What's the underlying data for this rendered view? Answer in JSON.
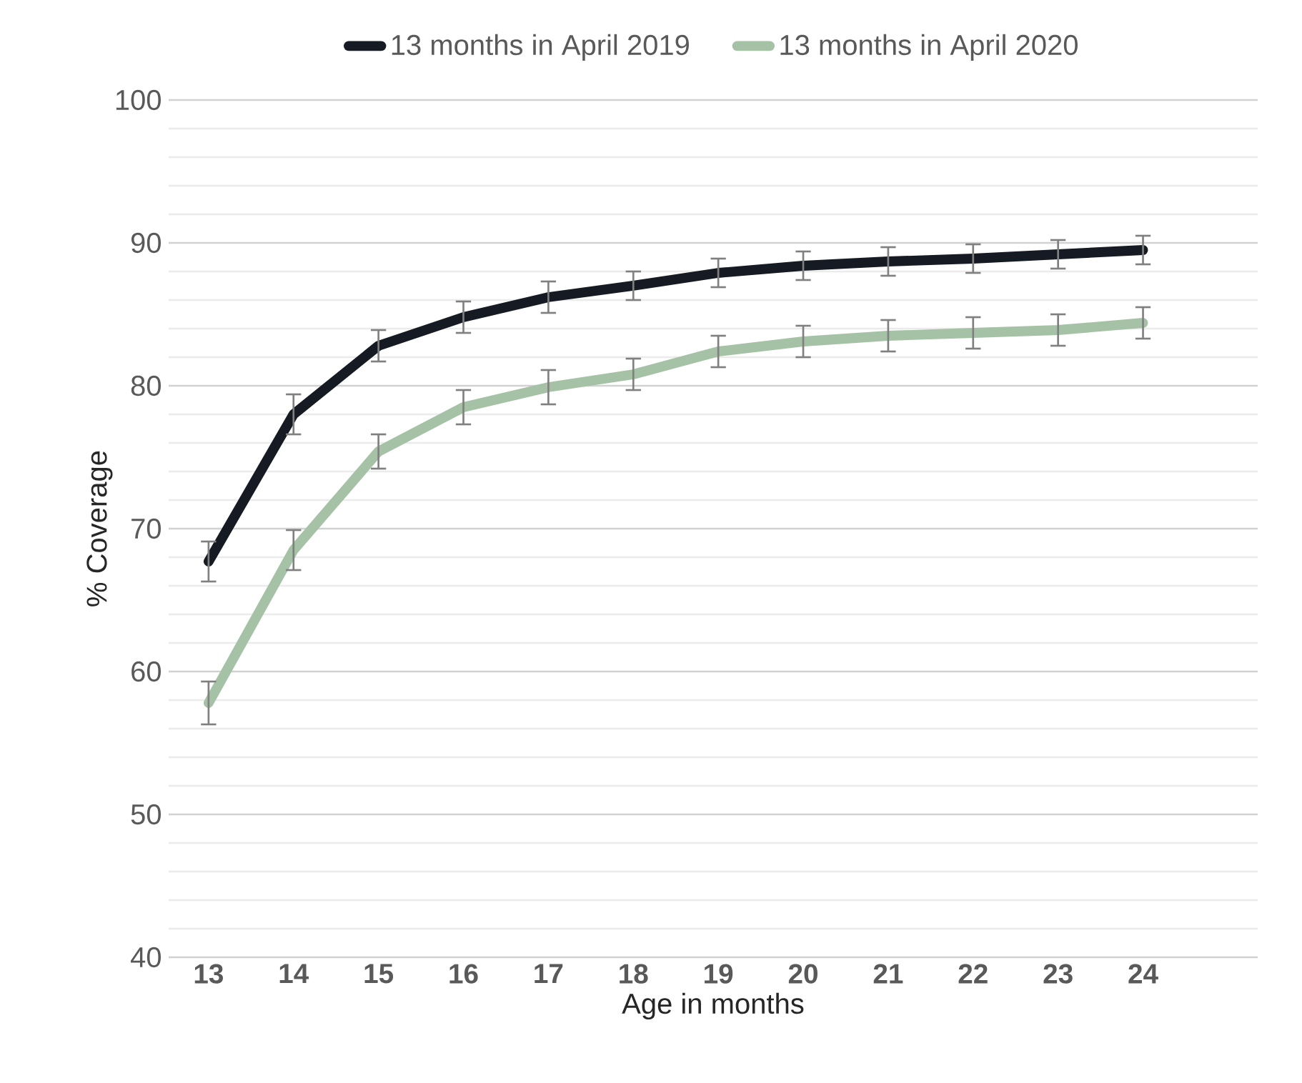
{
  "chart_data": {
    "type": "line",
    "xlabel": "Age in months",
    "ylabel": "% Coverage",
    "categories": [
      "13",
      "14",
      "15",
      "16",
      "17",
      "18",
      "19",
      "20",
      "21",
      "22",
      "23",
      "24"
    ],
    "series": [
      {
        "name": "13 months in April 2019",
        "color": "#161a22",
        "values": [
          67.7,
          78.0,
          82.8,
          84.8,
          86.2,
          87.0,
          87.9,
          88.4,
          88.7,
          88.9,
          89.2,
          89.5
        ],
        "errors": [
          1.4,
          1.4,
          1.1,
          1.1,
          1.1,
          1.0,
          1.0,
          1.0,
          1.0,
          1.0,
          1.0,
          1.0
        ]
      },
      {
        "name": "13 months in April 2020",
        "color": "#a6c2a6",
        "values": [
          57.8,
          68.5,
          75.4,
          78.5,
          79.9,
          80.8,
          82.4,
          83.1,
          83.5,
          83.7,
          83.9,
          84.4
        ],
        "errors": [
          1.5,
          1.4,
          1.2,
          1.2,
          1.2,
          1.1,
          1.1,
          1.1,
          1.1,
          1.1,
          1.1,
          1.1
        ]
      }
    ],
    "ylim": [
      40,
      100
    ],
    "yticks": [
      40,
      50,
      60,
      70,
      80,
      90,
      100
    ],
    "grid": "y",
    "legend": "top",
    "marker": "none",
    "line_style": "solid"
  }
}
